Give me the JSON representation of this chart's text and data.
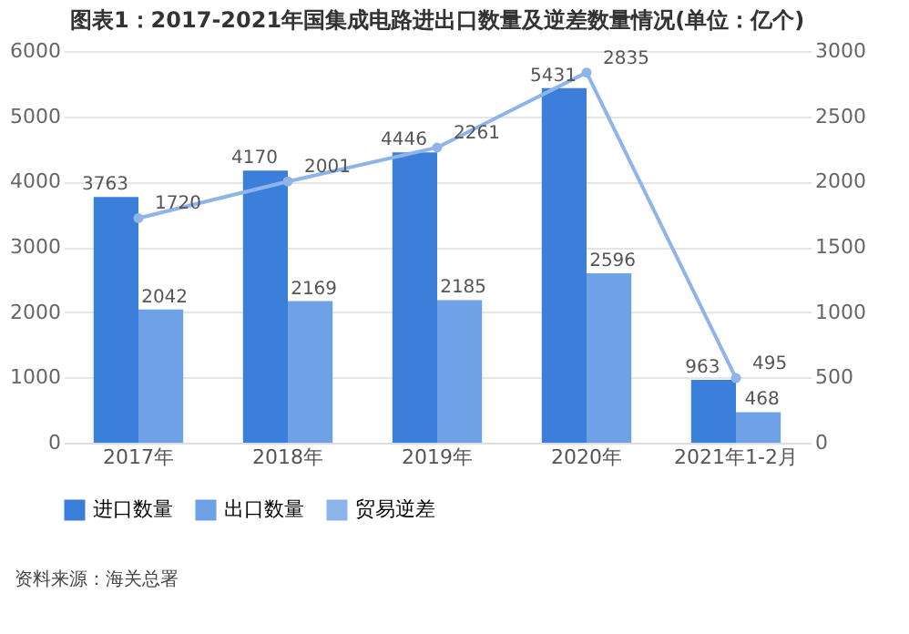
{
  "chart_data": {
    "type": "bar",
    "title": "图表1：2017-2021年国集成电路进出口数量及逆差数量情况(单位：亿个)",
    "categories": [
      "2017年",
      "2018年",
      "2019年",
      "2020年",
      "2021年1-2月"
    ],
    "series": [
      {
        "name": "进口数量",
        "color": "#3b7fdb",
        "values": [
          3763,
          4170,
          4446,
          5431,
          963
        ]
      },
      {
        "name": "出口数量",
        "color": "#6ea1e6",
        "values": [
          2042,
          2169,
          2185,
          2596,
          468
        ]
      },
      {
        "name": "贸易逆差",
        "type": "line",
        "axis": "y2",
        "color": "#8fb4ea",
        "values": [
          1720,
          2001,
          2261,
          2835,
          495
        ]
      }
    ],
    "ylim": [
      0,
      6000
    ],
    "yticks": [
      0,
      1000,
      2000,
      3000,
      4000,
      5000,
      6000
    ],
    "y2lim": [
      0,
      3000
    ],
    "y2ticks": [
      0,
      500,
      1000,
      1500,
      2000,
      2500,
      3000
    ],
    "grid": "y",
    "legend": "bottom",
    "data_labels": true,
    "marker": "circle",
    "line_style": "solid",
    "annotations": [
      "资料来源：海关总署"
    ]
  }
}
